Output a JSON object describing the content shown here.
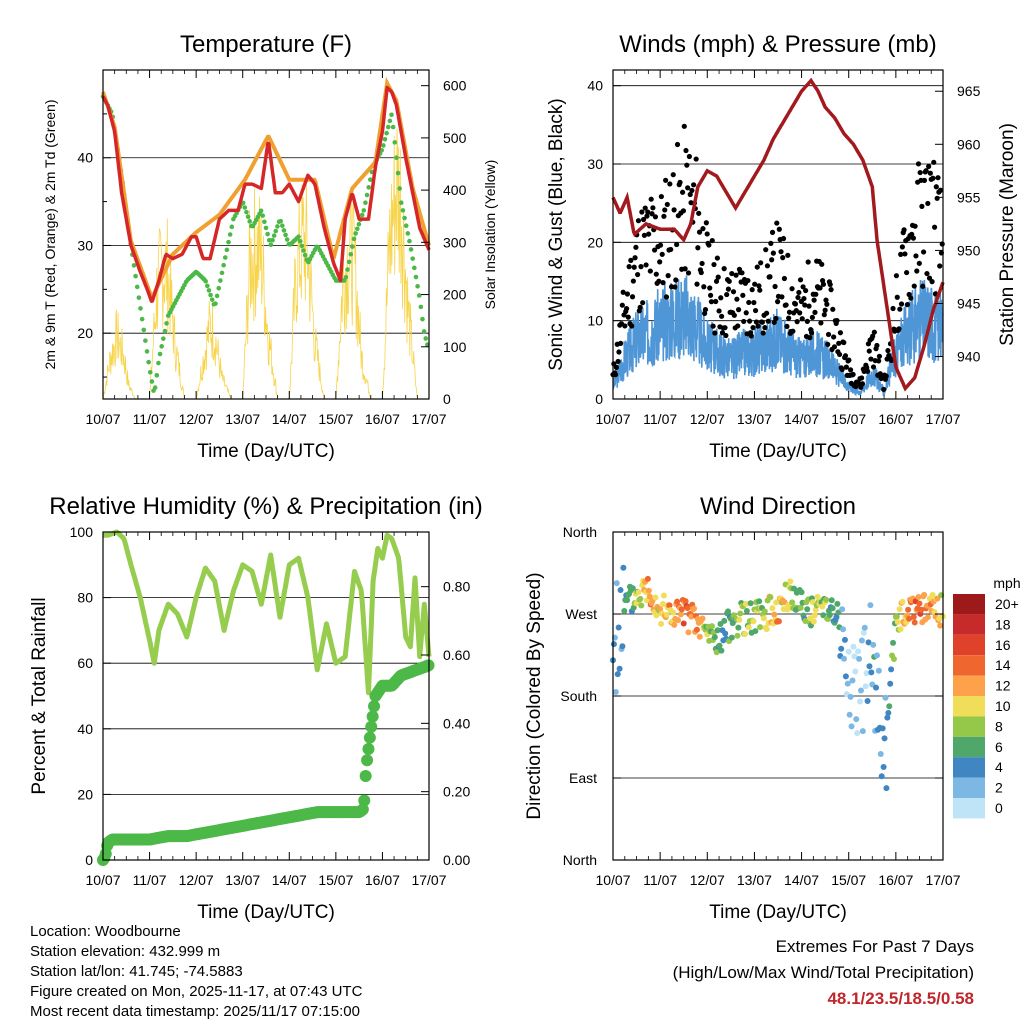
{
  "colors": {
    "temp_red": "#d62728",
    "temp_orange": "#f0a030",
    "dewpoint_green": "#4cb848",
    "solar_yellow": "#f7d44a",
    "gust_black": "#000000",
    "wind_blue": "#4f96d6",
    "pressure_maroon": "#a31a1e",
    "rh_lightgreen": "#96cd4e",
    "precip_green": "#4cb848",
    "extremes_red": "#c0272d"
  },
  "chart_data": [
    {
      "id": "temperature",
      "type": "line",
      "title": "Temperature (F)",
      "xlabel": "Time (Day/UTC)",
      "ylabel": "2m & 9m T (Red, Orange) & 2m Td (Green)",
      "y2label": "Solar Insolation (Yellow)",
      "x_ticks": [
        "10/07",
        "11/07",
        "12/07",
        "13/07",
        "14/07",
        "15/07",
        "16/07",
        "17/07"
      ],
      "xlim": [
        0,
        7
      ],
      "ylim": [
        12.5,
        50
      ],
      "y_ticks": [
        20,
        30,
        40
      ],
      "y2lim": [
        0,
        630
      ],
      "y2_ticks": [
        0,
        100,
        200,
        300,
        400,
        500,
        600
      ],
      "series": [
        {
          "name": "2m T",
          "color": "#d62728",
          "x": [
            0,
            0.1,
            0.25,
            0.4,
            0.6,
            0.8,
            0.95,
            1.05,
            1.2,
            1.35,
            1.5,
            1.7,
            1.9,
            2.0,
            2.15,
            2.3,
            2.5,
            2.7,
            2.9,
            3.05,
            3.2,
            3.4,
            3.55,
            3.7,
            3.85,
            4.0,
            4.2,
            4.4,
            4.55,
            4.75,
            4.95,
            5.1,
            5.2,
            5.35,
            5.5,
            5.7,
            5.85,
            6.0,
            6.1,
            6.2,
            6.3,
            6.5,
            6.65,
            6.8,
            7.0
          ],
          "values": [
            47,
            46,
            43,
            36,
            30,
            27,
            25,
            23.5,
            26,
            29,
            28.5,
            29,
            31,
            31,
            28.5,
            28.5,
            33,
            34,
            34,
            37,
            37,
            36.5,
            42,
            36,
            36,
            37,
            35,
            38,
            37,
            32,
            28,
            26,
            33,
            36,
            33,
            33,
            39,
            43,
            48,
            47.5,
            46,
            40,
            36,
            32,
            29.5
          ]
        },
        {
          "name": "9m T",
          "color": "#f0a030",
          "x": [
            0,
            0.25,
            0.6,
            1.05,
            1.5,
            2.0,
            2.5,
            3.05,
            3.55,
            4.0,
            4.55,
            4.95,
            5.35,
            5.85,
            6.1,
            6.3,
            6.65,
            7.0
          ],
          "values": [
            47.5,
            43.5,
            30.5,
            24,
            29,
            31.5,
            33.5,
            37.5,
            42.5,
            37.5,
            37.5,
            28.5,
            36.5,
            39.5,
            48.5,
            46.5,
            36.5,
            30
          ]
        },
        {
          "name": "2m Td",
          "color": "#4cb848",
          "x": [
            0,
            0.2,
            0.4,
            0.6,
            0.8,
            1.0,
            1.1,
            1.2,
            1.4,
            1.6,
            1.8,
            2.0,
            2.2,
            2.4,
            2.6,
            2.8,
            3.0,
            3.2,
            3.4,
            3.6,
            3.8,
            4.0,
            4.2,
            4.4,
            4.6,
            4.8,
            5.0,
            5.2,
            5.4,
            5.6,
            5.8,
            6.0,
            6.2,
            6.4,
            6.6,
            6.8,
            6.9,
            7.0
          ],
          "values": [
            47,
            45,
            38,
            30,
            23,
            16,
            13,
            17,
            22,
            24,
            26,
            27,
            26,
            23,
            28,
            33,
            35,
            32,
            34,
            30,
            33,
            30,
            31,
            28,
            30,
            28,
            26,
            26,
            31,
            34,
            39,
            41,
            45,
            35,
            30,
            24,
            20,
            18
          ]
        },
        {
          "name": "Solar Insolation",
          "axis": "y2",
          "color": "#f7d44a",
          "x": [
            0,
            0.15,
            0.3,
            0.45,
            0.55,
            0.7,
            1.0,
            1.15,
            1.3,
            1.4,
            1.55,
            1.75,
            2.0,
            2.15,
            2.3,
            2.4,
            2.55,
            2.75,
            3.0,
            3.15,
            3.3,
            3.4,
            3.55,
            3.75,
            4.0,
            4.15,
            4.3,
            4.4,
            4.55,
            4.75,
            5.0,
            5.15,
            5.3,
            5.4,
            5.55,
            5.75,
            6.0,
            6.15,
            6.3,
            6.4,
            6.55,
            6.75,
            7.0
          ],
          "values": [
            0,
            110,
            180,
            120,
            40,
            0,
            0,
            300,
            380,
            350,
            150,
            0,
            0,
            110,
            210,
            180,
            60,
            0,
            0,
            380,
            430,
            400,
            180,
            0,
            0,
            360,
            450,
            410,
            160,
            0,
            0,
            330,
            420,
            380,
            120,
            0,
            0,
            430,
            610,
            560,
            250,
            0,
            0
          ]
        }
      ]
    },
    {
      "id": "winds",
      "type": "scatter",
      "title": "Winds (mph) & Pressure (mb)",
      "xlabel": "Time (Day/UTC)",
      "ylabel": "Sonic Wind & Gust (Blue, Black)",
      "y2label": "Station Pressure (Maroon)",
      "x_ticks": [
        "10/07",
        "11/07",
        "12/07",
        "13/07",
        "14/07",
        "15/07",
        "16/07",
        "17/07"
      ],
      "xlim": [
        0,
        7
      ],
      "ylim": [
        0,
        42
      ],
      "y_ticks": [
        0,
        10,
        20,
        30,
        40
      ],
      "y2lim": [
        936,
        967
      ],
      "y2_ticks": [
        940,
        945,
        950,
        955,
        960,
        965
      ],
      "series": [
        {
          "name": "Gust",
          "color": "#000000",
          "x": [
            0,
            0.25,
            0.5,
            0.75,
            1.0,
            1.25,
            1.5,
            1.75,
            2.0,
            2.25,
            2.5,
            2.75,
            3.0,
            3.25,
            3.5,
            3.75,
            4.0,
            4.25,
            4.5,
            4.75,
            5.0,
            5.25,
            5.5,
            5.75,
            6.0,
            6.25,
            6.5,
            6.75,
            7.0
          ],
          "values": [
            3,
            12,
            19,
            21,
            21,
            24,
            27,
            25,
            17,
            14,
            13,
            14,
            13,
            15,
            18,
            14,
            12,
            15,
            13,
            9,
            4,
            2,
            8,
            2,
            12,
            20,
            24,
            26,
            20
          ]
        },
        {
          "name": "Sonic Wind",
          "color": "#4f96d6",
          "x": [
            0,
            0.25,
            0.5,
            0.75,
            1.0,
            1.25,
            1.5,
            1.75,
            2.0,
            2.25,
            2.5,
            2.75,
            3.0,
            3.25,
            3.5,
            3.75,
            4.0,
            4.25,
            4.5,
            4.75,
            5.0,
            5.25,
            5.5,
            5.75,
            6.0,
            6.25,
            6.5,
            6.75,
            7.0
          ],
          "values": [
            2,
            6,
            9,
            10,
            11,
            12,
            13,
            11,
            8,
            7,
            6,
            7,
            7,
            8,
            9,
            7,
            6,
            7,
            6,
            4,
            2,
            1,
            4,
            1,
            7,
            10,
            12,
            12,
            10
          ]
        },
        {
          "name": "Station Pressure",
          "axis": "y2",
          "color": "#a31a1e",
          "x": [
            0,
            0.15,
            0.3,
            0.45,
            0.7,
            1.0,
            1.3,
            1.5,
            1.65,
            1.8,
            2.0,
            2.2,
            2.4,
            2.6,
            2.8,
            3.0,
            3.2,
            3.4,
            3.6,
            3.8,
            4.0,
            4.2,
            4.35,
            4.5,
            4.7,
            4.9,
            5.1,
            5.3,
            5.5,
            5.6,
            5.8,
            6.0,
            6.2,
            6.4,
            6.6,
            6.8,
            7.0
          ],
          "values": [
            955,
            953.5,
            955,
            951.5,
            952.5,
            952,
            952,
            951,
            952.5,
            956,
            957.5,
            957,
            955.5,
            954,
            955.5,
            957,
            958.5,
            960.5,
            962,
            963.5,
            965,
            966,
            965,
            963.5,
            962.5,
            961,
            960,
            958.5,
            956,
            951,
            945,
            939,
            937,
            938,
            941,
            944.5,
            947
          ]
        }
      ]
    },
    {
      "id": "humidity",
      "type": "line",
      "title": "Relative Humidity (%) & Precipitation (in)",
      "xlabel": "Time (Day/UTC)",
      "ylabel": "Percent & Total Rainfall",
      "x_ticks": [
        "10/07",
        "11/07",
        "12/07",
        "13/07",
        "14/07",
        "15/07",
        "16/07",
        "17/07"
      ],
      "xlim": [
        0,
        7
      ],
      "ylim": [
        0,
        100
      ],
      "y_ticks": [
        0,
        20,
        40,
        60,
        80,
        100
      ],
      "y2lim": [
        0,
        0.96
      ],
      "y2_ticks": [
        "0.00",
        "0.20",
        "0.40",
        "0.60",
        "0.80"
      ],
      "series": [
        {
          "name": "Relative Humidity",
          "color": "#96cd4e",
          "x": [
            0,
            0.1,
            0.3,
            0.45,
            0.6,
            0.8,
            1.0,
            1.1,
            1.2,
            1.4,
            1.6,
            1.8,
            2.0,
            2.2,
            2.4,
            2.6,
            2.8,
            3.0,
            3.2,
            3.4,
            3.6,
            3.8,
            4.0,
            4.2,
            4.4,
            4.6,
            4.8,
            5.0,
            5.2,
            5.4,
            5.55,
            5.7,
            5.8,
            5.9,
            6.0,
            6.1,
            6.2,
            6.35,
            6.5,
            6.6,
            6.7,
            6.8,
            6.9,
            7.0
          ],
          "values": [
            99,
            99,
            100,
            98,
            90,
            80,
            67,
            60,
            70,
            78,
            75,
            68,
            80,
            89,
            85,
            70,
            82,
            90,
            88,
            78,
            93,
            74,
            90,
            92,
            80,
            58,
            72,
            60,
            62,
            88,
            82,
            51,
            85,
            95,
            92,
            99,
            98,
            92,
            68,
            65,
            86,
            62,
            78,
            62
          ]
        },
        {
          "name": "Total Rainfall",
          "axis": "y2",
          "color": "#4cb848",
          "x": [
            0,
            0.05,
            0.1,
            0.2,
            0.6,
            1.0,
            1.4,
            1.8,
            2.2,
            2.6,
            3.0,
            3.4,
            3.8,
            4.2,
            4.6,
            5.0,
            5.4,
            5.5,
            5.6,
            5.65,
            5.75,
            5.85,
            6.0,
            6.2,
            6.4,
            6.6,
            6.8,
            7.0
          ],
          "values": [
            0,
            0.01,
            0.05,
            0.06,
            0.06,
            0.06,
            0.07,
            0.07,
            0.08,
            0.09,
            0.1,
            0.11,
            0.12,
            0.13,
            0.14,
            0.14,
            0.14,
            0.14,
            0.15,
            0.27,
            0.38,
            0.48,
            0.51,
            0.51,
            0.54,
            0.55,
            0.56,
            0.57
          ]
        }
      ]
    },
    {
      "id": "wind_direction",
      "type": "scatter",
      "title": "Wind Direction",
      "xlabel": "Time (Day/UTC)",
      "ylabel": "Direction (Colored By Speed)",
      "x_ticks": [
        "10/07",
        "11/07",
        "12/07",
        "13/07",
        "14/07",
        "15/07",
        "16/07",
        "17/07"
      ],
      "xlim": [
        0,
        7
      ],
      "ylim": [
        0,
        360
      ],
      "y_ticks": [
        "North",
        "East",
        "South",
        "West",
        "North"
      ],
      "colorbar": {
        "title": "mph",
        "labels": [
          "20+",
          "18",
          "16",
          "14",
          "12",
          "10",
          "8",
          "6",
          "4",
          "2",
          "0"
        ],
        "colors": [
          "#9e1a1a",
          "#c62a2a",
          "#e0412b",
          "#f0662f",
          "#fda24a",
          "#f0de5a",
          "#95c849",
          "#4fa86a",
          "#3f86c2",
          "#7db8e4",
          "#bfe3f7"
        ]
      },
      "series": [
        {
          "name": "Wind direction (deg)",
          "x": [
            0,
            0.25,
            0.5,
            0.75,
            1.0,
            1.25,
            1.5,
            1.75,
            2.0,
            2.25,
            2.5,
            2.75,
            3.0,
            3.25,
            3.5,
            3.75,
            4.0,
            4.25,
            4.5,
            4.75,
            5.0,
            5.25,
            5.5,
            5.75,
            6.0,
            6.25,
            6.5,
            6.75,
            7.0
          ],
          "values": [
            230,
            280,
            290,
            300,
            275,
            270,
            270,
            260,
            250,
            240,
            260,
            265,
            265,
            270,
            275,
            290,
            285,
            270,
            285,
            270,
            200,
            180,
            230,
            100,
            265,
            270,
            280,
            275,
            275
          ],
          "speeds": [
            2,
            4,
            8,
            12,
            10,
            12,
            14,
            13,
            8,
            5,
            6,
            8,
            8,
            9,
            12,
            8,
            6,
            9,
            8,
            5,
            1,
            1,
            4,
            3,
            8,
            12,
            14,
            12,
            10
          ]
        }
      ]
    }
  ],
  "footer": {
    "location": "Location: Woodbourne",
    "elevation": "Station elevation: 432.999 m",
    "latlon": "Station lat/lon: 41.745; -74.5883",
    "created": "Figure created on Mon, 2025-11-17, at 07:43 UTC",
    "recent": "Most recent data timestamp: 2025/11/17 07:15:00"
  },
  "extremes": {
    "heading": "Extremes For Past 7 Days",
    "subheading": "(High/Low/Max Wind/Total Precipitation)",
    "values": "48.1/23.5/18.5/0.58"
  }
}
